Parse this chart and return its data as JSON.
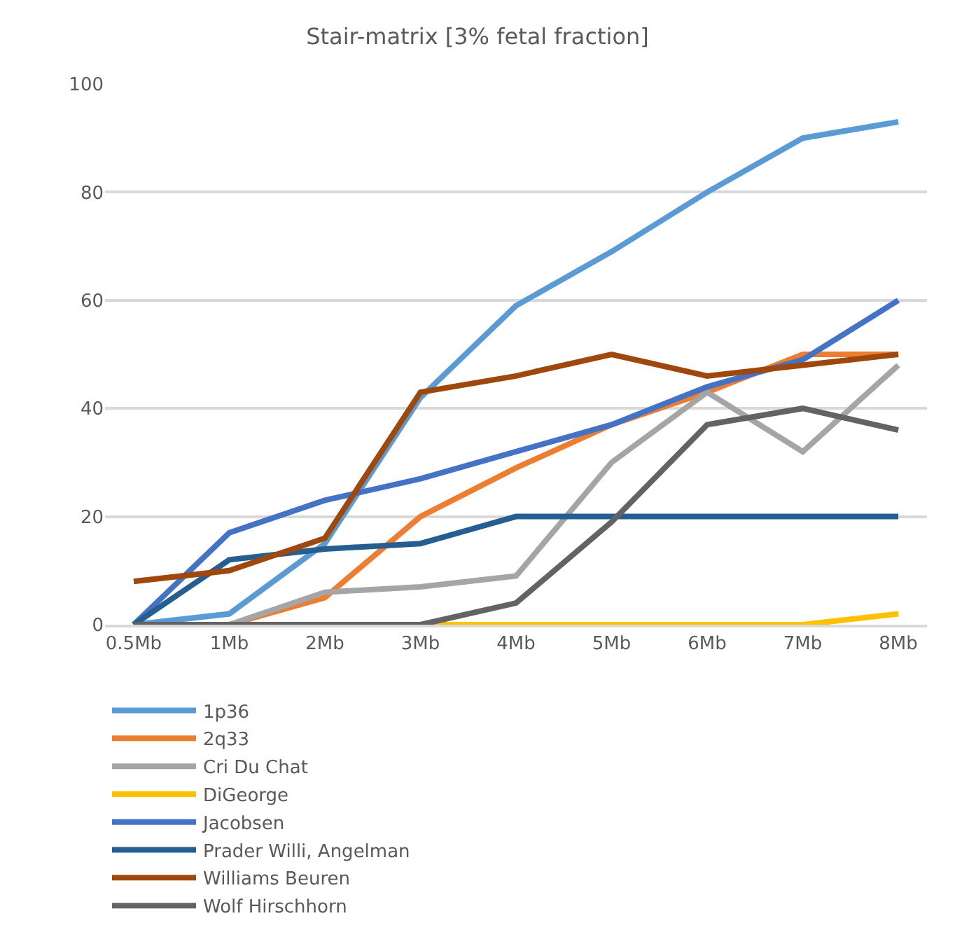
{
  "chart_data": {
    "type": "line",
    "title": "Stair-matrix [3% fetal fraction]",
    "categories": [
      "0.5Mb",
      "1Mb",
      "2Mb",
      "3Mb",
      "4Mb",
      "5Mb",
      "6Mb",
      "7Mb",
      "8Mb"
    ],
    "series": [
      {
        "name": "1p36",
        "color": "#5b9bd5",
        "values": [
          0,
          2,
          15,
          42,
          59,
          69,
          80,
          90,
          93
        ]
      },
      {
        "name": "2q33",
        "color": "#ed7d31",
        "values": [
          0,
          0,
          5,
          20,
          29,
          37,
          43,
          50,
          50
        ]
      },
      {
        "name": "Cri Du Chat",
        "color": "#a5a5a5",
        "values": [
          0,
          0,
          6,
          7,
          9,
          30,
          43,
          32,
          48
        ]
      },
      {
        "name": "DiGeorge",
        "color": "#ffc000",
        "values": [
          null,
          null,
          0,
          0,
          0,
          0,
          0,
          0,
          2
        ]
      },
      {
        "name": "Jacobsen",
        "color": "#4472c4",
        "values": [
          0,
          17,
          23,
          27,
          32,
          37,
          44,
          49,
          60
        ]
      },
      {
        "name": "Prader Willi, Angelman",
        "color": "#255e91",
        "values": [
          0,
          12,
          14,
          15,
          20,
          20,
          20,
          20,
          20
        ]
      },
      {
        "name": "Williams Beuren",
        "color": "#9e480e",
        "values": [
          8,
          10,
          16,
          43,
          46,
          50,
          46,
          48,
          50
        ]
      },
      {
        "name": "Wolf Hirschhorn",
        "color": "#636363",
        "values": [
          0,
          0,
          0,
          0,
          4,
          19,
          37,
          40,
          36
        ]
      }
    ],
    "ylim": [
      0,
      100
    ],
    "yticks": [
      0,
      20,
      40,
      60,
      80,
      100
    ],
    "grid": "y",
    "legend": "bottom",
    "marker": "none",
    "line_style": "solid"
  }
}
